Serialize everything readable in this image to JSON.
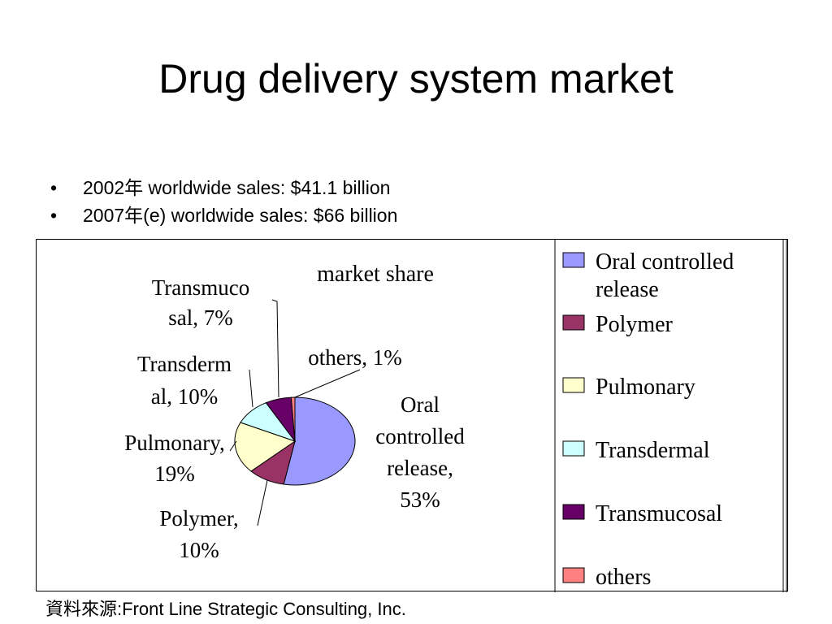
{
  "slide": {
    "title": "Drug delivery system market",
    "bullets": [
      "2002年 worldwide sales: $41.1 billion",
      "2007年(e) worldwide sales: $66 billion"
    ],
    "source": "資料來源:Front Line Strategic Consulting, Inc."
  },
  "chart_data": {
    "type": "pie",
    "title": "market share",
    "legend_position": "right",
    "slices": [
      {
        "name": "Oral controlled release",
        "value": 53,
        "color": "#9999ff",
        "label_lines": [
          "Oral",
          "controlled",
          "release,",
          "53%"
        ],
        "legend_lines": [
          "Oral controlled",
          "release"
        ]
      },
      {
        "name": "Polymer",
        "value": 10,
        "color": "#993366",
        "label_lines": [
          "Polymer,",
          "10%"
        ],
        "legend_lines": [
          "Polymer"
        ]
      },
      {
        "name": "Pulmonary",
        "value": 19,
        "color": "#ffffcc",
        "label_lines": [
          "Pulmonary,",
          "19%"
        ],
        "legend_lines": [
          "Pulmonary"
        ]
      },
      {
        "name": "Transdermal",
        "value": 10,
        "color": "#ccffff",
        "label_lines": [
          "Transderm",
          "al, 10%"
        ],
        "legend_lines": [
          "Transdermal"
        ]
      },
      {
        "name": "Transmucosal",
        "value": 7,
        "color": "#660066",
        "label_lines": [
          "Transmuco",
          "sal, 7%"
        ],
        "legend_lines": [
          "Transmucosal"
        ]
      },
      {
        "name": "others",
        "value": 1,
        "color": "#ff8080",
        "label_lines": [
          "others, 1%"
        ],
        "legend_lines": [
          "others"
        ]
      }
    ]
  }
}
